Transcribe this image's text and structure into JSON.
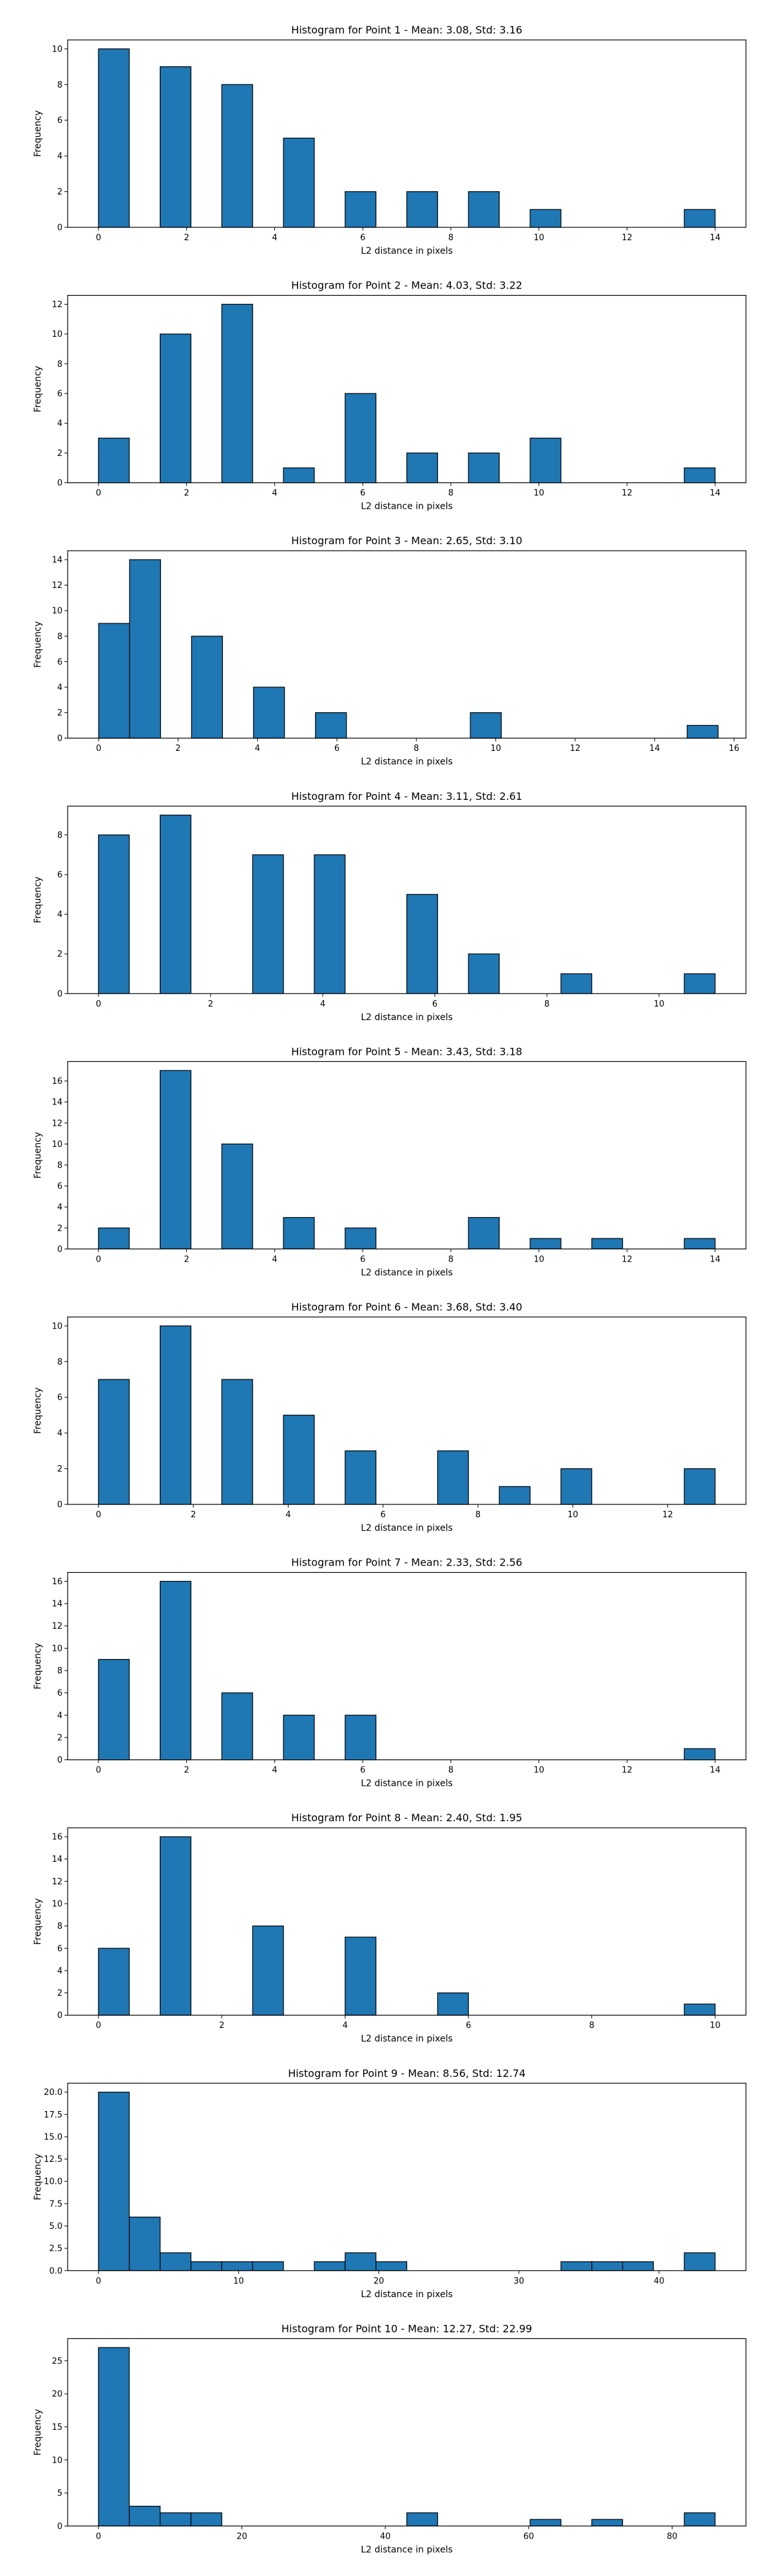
{
  "chart_data": [
    {
      "type": "bar",
      "title": "Histogram for Point 1 - Mean: 3.08, Std: 3.16",
      "xlabel": "L2 distance in pixels",
      "ylabel": "Frequency",
      "xlim": [
        -0.7,
        14.7
      ],
      "ylim": [
        0,
        10.5
      ],
      "xticks": [
        0,
        2,
        4,
        6,
        8,
        10,
        12,
        14
      ],
      "yticks": [
        0,
        2,
        4,
        6,
        8,
        10
      ],
      "bar_width": 0.7,
      "bars": [
        {
          "x": 0,
          "value": 10
        },
        {
          "x": 1.4,
          "value": 9
        },
        {
          "x": 2.8,
          "value": 8
        },
        {
          "x": 4.2,
          "value": 5
        },
        {
          "x": 5.6,
          "value": 2
        },
        {
          "x": 7.0,
          "value": 2
        },
        {
          "x": 8.4,
          "value": 2
        },
        {
          "x": 9.8,
          "value": 1
        },
        {
          "x": 13.3,
          "value": 1
        }
      ]
    },
    {
      "type": "bar",
      "title": "Histogram for Point 2 - Mean: 4.03, Std: 3.22",
      "xlabel": "L2 distance in pixels",
      "ylabel": "Frequency",
      "xlim": [
        -0.7,
        14.7
      ],
      "ylim": [
        0,
        12.6
      ],
      "xticks": [
        0,
        2,
        4,
        6,
        8,
        10,
        12,
        14
      ],
      "yticks": [
        0,
        2,
        4,
        6,
        8,
        10,
        12
      ],
      "bar_width": 0.7,
      "bars": [
        {
          "x": 0,
          "value": 3
        },
        {
          "x": 1.4,
          "value": 10
        },
        {
          "x": 2.8,
          "value": 12
        },
        {
          "x": 4.2,
          "value": 1
        },
        {
          "x": 5.6,
          "value": 6
        },
        {
          "x": 7.0,
          "value": 2
        },
        {
          "x": 8.4,
          "value": 2
        },
        {
          "x": 9.8,
          "value": 3
        },
        {
          "x": 13.3,
          "value": 1
        }
      ]
    },
    {
      "type": "bar",
      "title": "Histogram for Point 3 - Mean: 2.65, Std: 3.10",
      "xlabel": "L2 distance in pixels",
      "ylabel": "Frequency",
      "xlim": [
        -0.78,
        16.3
      ],
      "ylim": [
        0,
        14.7
      ],
      "xticks": [
        0,
        2,
        4,
        6,
        8,
        10,
        12,
        14,
        16
      ],
      "yticks": [
        0,
        2,
        4,
        6,
        8,
        10,
        12,
        14
      ],
      "bar_width": 0.78,
      "bars": [
        {
          "x": 0,
          "value": 9
        },
        {
          "x": 0.78,
          "value": 14
        },
        {
          "x": 2.34,
          "value": 8
        },
        {
          "x": 3.9,
          "value": 4
        },
        {
          "x": 5.46,
          "value": 2
        },
        {
          "x": 9.36,
          "value": 2
        },
        {
          "x": 14.82,
          "value": 1
        }
      ]
    },
    {
      "type": "bar",
      "title": "Histogram for Point 4 - Mean: 3.11, Std: 2.61",
      "xlabel": "L2 distance in pixels",
      "ylabel": "Frequency",
      "xlim": [
        -0.55,
        11.55
      ],
      "ylim": [
        0,
        9.45
      ],
      "xticks": [
        0,
        2,
        4,
        6,
        8,
        10
      ],
      "yticks": [
        0,
        2,
        4,
        6,
        8
      ],
      "bar_width": 0.55,
      "bars": [
        {
          "x": 0,
          "value": 8
        },
        {
          "x": 1.1,
          "value": 9
        },
        {
          "x": 2.75,
          "value": 7
        },
        {
          "x": 3.85,
          "value": 7
        },
        {
          "x": 5.5,
          "value": 5
        },
        {
          "x": 6.6,
          "value": 2
        },
        {
          "x": 8.25,
          "value": 1
        },
        {
          "x": 10.45,
          "value": 1
        }
      ]
    },
    {
      "type": "bar",
      "title": "Histogram for Point 5 - Mean: 3.43, Std: 3.18",
      "xlabel": "L2 distance in pixels",
      "ylabel": "Frequency",
      "xlim": [
        -0.7,
        14.7
      ],
      "ylim": [
        0,
        17.85
      ],
      "xticks": [
        0,
        2,
        4,
        6,
        8,
        10,
        12,
        14
      ],
      "yticks": [
        0,
        2,
        4,
        6,
        8,
        10,
        12,
        14,
        16
      ],
      "bar_width": 0.7,
      "bars": [
        {
          "x": 0,
          "value": 2
        },
        {
          "x": 1.4,
          "value": 17
        },
        {
          "x": 2.8,
          "value": 10
        },
        {
          "x": 4.2,
          "value": 3
        },
        {
          "x": 5.6,
          "value": 2
        },
        {
          "x": 8.4,
          "value": 3
        },
        {
          "x": 9.8,
          "value": 1
        },
        {
          "x": 11.2,
          "value": 1
        },
        {
          "x": 13.3,
          "value": 1
        }
      ]
    },
    {
      "type": "bar",
      "title": "Histogram for Point 6 - Mean: 3.68, Std: 3.40",
      "xlabel": "L2 distance in pixels",
      "ylabel": "Frequency",
      "xlim": [
        -0.65,
        13.65
      ],
      "ylim": [
        0,
        10.5
      ],
      "xticks": [
        0,
        2,
        4,
        6,
        8,
        10,
        12
      ],
      "yticks": [
        0,
        2,
        4,
        6,
        8,
        10
      ],
      "bar_width": 0.65,
      "bars": [
        {
          "x": 0,
          "value": 7
        },
        {
          "x": 1.3,
          "value": 10
        },
        {
          "x": 2.6,
          "value": 7
        },
        {
          "x": 3.9,
          "value": 5
        },
        {
          "x": 5.2,
          "value": 3
        },
        {
          "x": 7.15,
          "value": 3
        },
        {
          "x": 8.45,
          "value": 1
        },
        {
          "x": 9.75,
          "value": 2
        },
        {
          "x": 12.35,
          "value": 2
        }
      ]
    },
    {
      "type": "bar",
      "title": "Histogram for Point 7 - Mean: 2.33, Std: 2.56",
      "xlabel": "L2 distance in pixels",
      "ylabel": "Frequency",
      "xlim": [
        -0.7,
        14.7
      ],
      "ylim": [
        0,
        16.8
      ],
      "xticks": [
        0,
        2,
        4,
        6,
        8,
        10,
        12,
        14
      ],
      "yticks": [
        0,
        2,
        4,
        6,
        8,
        10,
        12,
        14,
        16
      ],
      "bar_width": 0.7,
      "bars": [
        {
          "x": 0,
          "value": 9
        },
        {
          "x": 1.4,
          "value": 16
        },
        {
          "x": 2.8,
          "value": 6
        },
        {
          "x": 4.2,
          "value": 4
        },
        {
          "x": 5.6,
          "value": 4
        },
        {
          "x": 13.3,
          "value": 1
        }
      ]
    },
    {
      "type": "bar",
      "title": "Histogram for Point 8 - Mean: 2.40, Std: 1.95",
      "xlabel": "L2 distance in pixels",
      "ylabel": "Frequency",
      "xlim": [
        -0.5,
        10.5
      ],
      "ylim": [
        0,
        16.8
      ],
      "xticks": [
        0,
        2,
        4,
        6,
        8,
        10
      ],
      "yticks": [
        0,
        2,
        4,
        6,
        8,
        10,
        12,
        14,
        16
      ],
      "bar_width": 0.5,
      "bars": [
        {
          "x": 0,
          "value": 6
        },
        {
          "x": 1.0,
          "value": 16
        },
        {
          "x": 2.5,
          "value": 8
        },
        {
          "x": 4.0,
          "value": 7
        },
        {
          "x": 5.5,
          "value": 2
        },
        {
          "x": 9.5,
          "value": 1
        }
      ]
    },
    {
      "type": "bar",
      "title": "Histogram for Point 9 - Mean: 8.56, Std: 12.74",
      "xlabel": "L2 distance in pixels",
      "ylabel": "Frequency",
      "xlim": [
        -2.2,
        46.2
      ],
      "ylim": [
        0,
        21
      ],
      "xticks": [
        0,
        10,
        20,
        30,
        40
      ],
      "yticks": [
        0.0,
        2.5,
        5.0,
        7.5,
        10.0,
        12.5,
        15.0,
        17.5,
        20.0
      ],
      "ytick_decimals": 1,
      "bar_width": 2.2,
      "bars": [
        {
          "x": 0,
          "value": 20
        },
        {
          "x": 2.2,
          "value": 6
        },
        {
          "x": 4.4,
          "value": 2
        },
        {
          "x": 6.6,
          "value": 1
        },
        {
          "x": 8.8,
          "value": 1
        },
        {
          "x": 11.0,
          "value": 1
        },
        {
          "x": 15.4,
          "value": 1
        },
        {
          "x": 17.6,
          "value": 2
        },
        {
          "x": 19.8,
          "value": 1
        },
        {
          "x": 33.0,
          "value": 1
        },
        {
          "x": 35.2,
          "value": 1
        },
        {
          "x": 37.4,
          "value": 1
        },
        {
          "x": 41.8,
          "value": 2
        }
      ]
    },
    {
      "type": "bar",
      "title": "Histogram for Point 10 - Mean: 12.27, Std: 22.99",
      "xlabel": "L2 distance in pixels",
      "ylabel": "Frequency",
      "xlim": [
        -4.3,
        90.3
      ],
      "ylim": [
        0,
        28.35
      ],
      "xticks": [
        0,
        20,
        40,
        60,
        80
      ],
      "yticks": [
        0,
        5,
        10,
        15,
        20,
        25
      ],
      "bar_width": 4.3,
      "bars": [
        {
          "x": 0,
          "value": 27
        },
        {
          "x": 4.3,
          "value": 3
        },
        {
          "x": 8.6,
          "value": 2
        },
        {
          "x": 12.9,
          "value": 2
        },
        {
          "x": 43.0,
          "value": 2
        },
        {
          "x": 60.2,
          "value": 1
        },
        {
          "x": 68.8,
          "value": 1
        },
        {
          "x": 81.7,
          "value": 2
        }
      ]
    }
  ],
  "colors": {
    "bar_fill": "#1f77b4",
    "bar_edge": "#000000",
    "axes": "#000000",
    "background": "#ffffff"
  }
}
